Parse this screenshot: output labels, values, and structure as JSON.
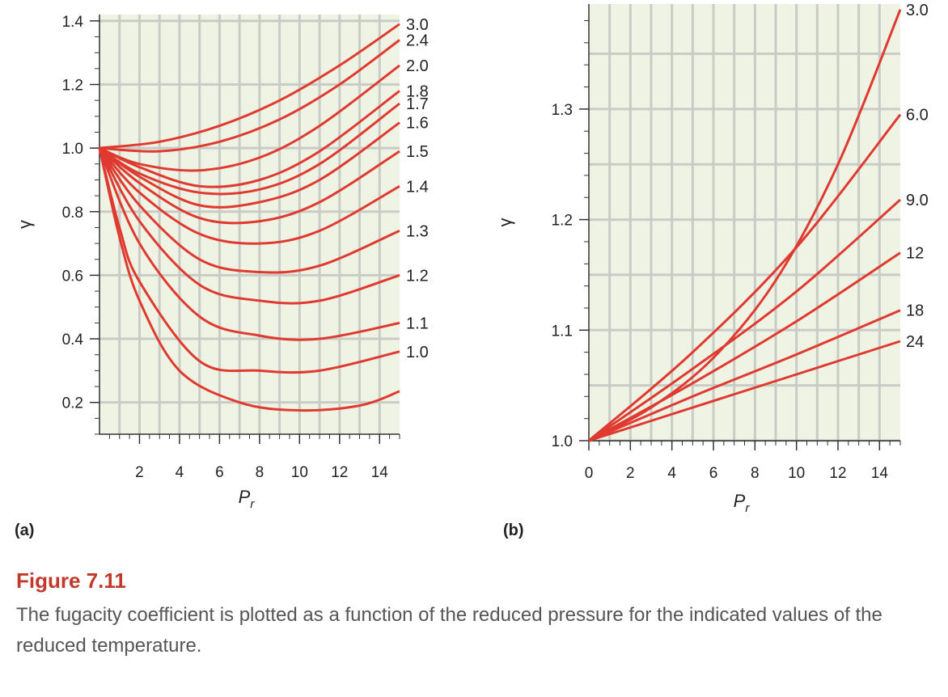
{
  "chart_data": [
    {
      "type": "line",
      "panel_label": "(a)",
      "xlabel": "P",
      "xlabel_sub": "r",
      "ylabel": "γ",
      "xlim": [
        0,
        15
      ],
      "ylim": [
        0.1,
        1.42
      ],
      "xticks": [
        2,
        4,
        6,
        8,
        10,
        12,
        14
      ],
      "yticks": [
        0.2,
        0.4,
        0.6,
        0.8,
        1.0,
        1.2,
        1.4
      ],
      "ytick_labels": [
        "0.2",
        "0.4",
        "0.6",
        "0.8",
        "1.0",
        "1.2",
        "1.4"
      ],
      "grid": true,
      "series": [
        {
          "name": "3.0",
          "x": [
            0,
            3,
            6,
            9,
            12,
            15
          ],
          "y": [
            1.0,
            1.02,
            1.07,
            1.15,
            1.26,
            1.39
          ]
        },
        {
          "name": "2.4",
          "x": [
            0,
            3,
            6,
            9,
            12,
            15
          ],
          "y": [
            1.0,
            0.99,
            1.02,
            1.09,
            1.2,
            1.34
          ]
        },
        {
          "name": "2.0",
          "x": [
            0,
            2,
            5,
            8,
            11,
            15
          ],
          "y": [
            1.0,
            0.95,
            0.93,
            0.97,
            1.07,
            1.26
          ]
        },
        {
          "name": "1.8",
          "x": [
            0,
            2,
            5,
            8,
            11,
            15
          ],
          "y": [
            1.0,
            0.94,
            0.88,
            0.9,
            0.99,
            1.18
          ]
        },
        {
          "name": "1.7",
          "x": [
            0,
            2,
            5,
            8,
            11,
            15
          ],
          "y": [
            1.0,
            0.92,
            0.86,
            0.87,
            0.95,
            1.14
          ]
        },
        {
          "name": "1.6",
          "x": [
            0,
            2,
            5,
            8,
            11,
            15
          ],
          "y": [
            1.0,
            0.91,
            0.82,
            0.83,
            0.9,
            1.08
          ]
        },
        {
          "name": "1.5",
          "x": [
            0,
            2,
            5,
            8,
            11,
            15
          ],
          "y": [
            1.0,
            0.89,
            0.78,
            0.77,
            0.83,
            0.99
          ]
        },
        {
          "name": "1.4",
          "x": [
            0,
            2,
            5,
            8,
            11,
            15
          ],
          "y": [
            1.0,
            0.86,
            0.73,
            0.7,
            0.74,
            0.88
          ]
        },
        {
          "name": "1.3",
          "x": [
            0,
            2,
            5,
            8,
            11,
            15
          ],
          "y": [
            1.0,
            0.82,
            0.65,
            0.61,
            0.63,
            0.74
          ]
        },
        {
          "name": "1.2",
          "x": [
            0,
            2,
            5,
            8,
            11,
            15
          ],
          "y": [
            1.0,
            0.77,
            0.57,
            0.52,
            0.52,
            0.6
          ]
        },
        {
          "name": "1.1",
          "x": [
            0,
            2,
            5,
            8,
            11,
            15
          ],
          "y": [
            1.0,
            0.7,
            0.47,
            0.41,
            0.4,
            0.45
          ]
        },
        {
          "name": "1.0",
          "x": [
            0,
            1,
            2,
            5,
            8,
            11,
            15
          ],
          "y": [
            1.0,
            0.75,
            0.58,
            0.33,
            0.3,
            0.3,
            0.36
          ]
        },
        {
          "name": "",
          "x": [
            0,
            1,
            2,
            4,
            7,
            10,
            13,
            15
          ],
          "y": [
            1.0,
            0.72,
            0.52,
            0.3,
            0.2,
            0.175,
            0.19,
            0.235
          ]
        }
      ]
    },
    {
      "type": "line",
      "panel_label": "(b)",
      "xlabel": "P",
      "xlabel_sub": "r",
      "ylabel": "γ",
      "xlim": [
        0,
        15
      ],
      "ylim": [
        1.0,
        1.395
      ],
      "xticks": [
        0,
        2,
        4,
        6,
        8,
        10,
        12,
        14
      ],
      "yticks": [
        1.0,
        1.1,
        1.2,
        1.3
      ],
      "ytick_labels": [
        "1.0",
        "1.1",
        "1.2",
        "1.3"
      ],
      "grid": true,
      "series": [
        {
          "name": "3.0",
          "x": [
            0,
            3,
            6,
            9,
            12,
            15
          ],
          "y": [
            1.0,
            1.03,
            1.075,
            1.145,
            1.25,
            1.39
          ]
        },
        {
          "name": "6.0",
          "x": [
            0,
            5,
            10,
            15
          ],
          "y": [
            1.0,
            1.08,
            1.175,
            1.295
          ]
        },
        {
          "name": "9.0",
          "x": [
            0,
            5,
            10,
            15
          ],
          "y": [
            1.0,
            1.065,
            1.135,
            1.218
          ]
        },
        {
          "name": "12",
          "x": [
            0,
            5,
            10,
            15
          ],
          "y": [
            1.0,
            1.052,
            1.108,
            1.17
          ]
        },
        {
          "name": "18",
          "x": [
            0,
            5,
            10,
            15
          ],
          "y": [
            1.0,
            1.04,
            1.078,
            1.118
          ]
        },
        {
          "name": "24",
          "x": [
            0,
            5,
            10,
            15
          ],
          "y": [
            1.0,
            1.03,
            1.06,
            1.09
          ]
        }
      ]
    }
  ],
  "caption": {
    "title": "Figure 7.11",
    "text": "The fugacity coefficient is plotted as a function of the reduced pressure for the indicated values of the reduced temperature."
  },
  "colors": {
    "curve": "#e03a30",
    "plot_bg": "#eef3e4",
    "grid": "#c9ccc6",
    "axis": "#333333",
    "caption_title": "#c0392b",
    "caption_text": "#555555"
  }
}
